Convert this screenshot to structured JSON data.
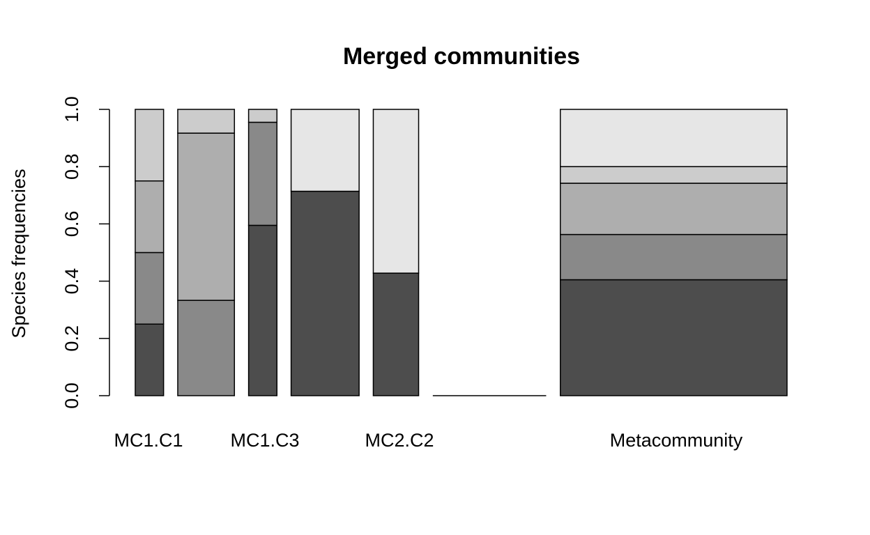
{
  "chart_data": {
    "type": "bar",
    "stacked": true,
    "title": "Merged communities",
    "ylabel": "Species frequencies",
    "ylim": [
      0,
      1
    ],
    "yticks": [
      "0.0",
      "0.2",
      "0.4",
      "0.6",
      "0.8",
      "1.0"
    ],
    "category_labels": [
      "MC1.C1",
      "MC1.C3",
      "MC2.C2",
      "Metacommunity"
    ],
    "segment_colors": [
      "#4d4d4d",
      "#898989",
      "#aeaeae",
      "#cccccc",
      "#e6e6e6"
    ],
    "bars": [
      {
        "weight": 1.0,
        "segments": [
          0.25,
          0.25,
          0.25,
          0.25,
          0
        ]
      },
      {
        "weight": 2.0,
        "segments": [
          0,
          0.333,
          0.584,
          0.083,
          0
        ]
      },
      {
        "weight": 1.0,
        "segments": [
          0.595,
          0.36,
          0,
          0.045,
          0
        ]
      },
      {
        "weight": 2.4,
        "segments": [
          0.714,
          0,
          0,
          0,
          0.286
        ]
      },
      {
        "weight": 1.6,
        "segments": [
          0.428,
          0,
          0,
          0,
          0.572
        ]
      },
      {
        "weight": 4.0,
        "segments": [
          0,
          0,
          0,
          0,
          0
        ]
      },
      {
        "weight": 8.0,
        "segments": [
          0.405,
          0.158,
          0.179,
          0.058,
          0.2
        ]
      }
    ]
  }
}
